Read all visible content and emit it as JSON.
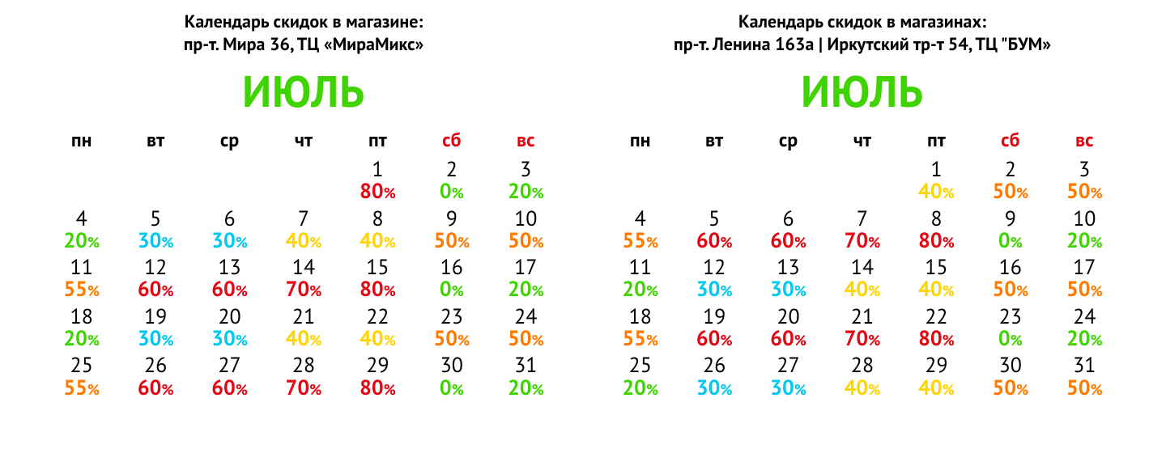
{
  "colors": {
    "black": "#000000",
    "red": "#e30613",
    "green": "#3fd400",
    "cyan": "#00c8f0",
    "yellow": "#ffd400",
    "orange": "#ff7a00"
  },
  "weekdays": {
    "labels": [
      "пн",
      "вт",
      "ср",
      "чт",
      "пт",
      "сб",
      "вс"
    ],
    "weekendColorKey": "red",
    "weekdayColorKey": "black"
  },
  "calendars": [
    {
      "headerLines": [
        "Календарь скидок в магазине:",
        "пр-т. Мира 36, ТЦ «МираМикс»"
      ],
      "month": "ИЮЛЬ",
      "monthColorKey": "green",
      "startWeekday": 4,
      "daysInMonth": 31,
      "discounts": {
        "1": {
          "v": 80,
          "c": "red"
        },
        "2": {
          "v": 0,
          "c": "green"
        },
        "3": {
          "v": 20,
          "c": "green"
        },
        "4": {
          "v": 20,
          "c": "green"
        },
        "5": {
          "v": 30,
          "c": "cyan"
        },
        "6": {
          "v": 30,
          "c": "cyan"
        },
        "7": {
          "v": 40,
          "c": "yellow"
        },
        "8": {
          "v": 40,
          "c": "yellow"
        },
        "9": {
          "v": 50,
          "c": "orange"
        },
        "10": {
          "v": 50,
          "c": "orange"
        },
        "11": {
          "v": 55,
          "c": "orange"
        },
        "12": {
          "v": 60,
          "c": "red"
        },
        "13": {
          "v": 60,
          "c": "red"
        },
        "14": {
          "v": 70,
          "c": "red"
        },
        "15": {
          "v": 80,
          "c": "red"
        },
        "16": {
          "v": 0,
          "c": "green"
        },
        "17": {
          "v": 20,
          "c": "green"
        },
        "18": {
          "v": 20,
          "c": "green"
        },
        "19": {
          "v": 30,
          "c": "cyan"
        },
        "20": {
          "v": 30,
          "c": "cyan"
        },
        "21": {
          "v": 40,
          "c": "yellow"
        },
        "22": {
          "v": 40,
          "c": "yellow"
        },
        "23": {
          "v": 50,
          "c": "orange"
        },
        "24": {
          "v": 50,
          "c": "orange"
        },
        "25": {
          "v": 55,
          "c": "orange"
        },
        "26": {
          "v": 60,
          "c": "red"
        },
        "27": {
          "v": 60,
          "c": "red"
        },
        "28": {
          "v": 70,
          "c": "red"
        },
        "29": {
          "v": 80,
          "c": "red"
        },
        "30": {
          "v": 0,
          "c": "green"
        },
        "31": {
          "v": 20,
          "c": "green"
        }
      }
    },
    {
      "headerLines": [
        "Календарь скидок в магазинaх:",
        "пр-т. Ленина 163а  | Иркутский тр-т 54, ТЦ \"БУМ»"
      ],
      "month": "ИЮЛЬ",
      "monthColorKey": "green",
      "startWeekday": 4,
      "daysInMonth": 31,
      "discounts": {
        "1": {
          "v": 40,
          "c": "yellow"
        },
        "2": {
          "v": 50,
          "c": "orange"
        },
        "3": {
          "v": 50,
          "c": "orange"
        },
        "4": {
          "v": 55,
          "c": "orange"
        },
        "5": {
          "v": 60,
          "c": "red"
        },
        "6": {
          "v": 60,
          "c": "red"
        },
        "7": {
          "v": 70,
          "c": "red"
        },
        "8": {
          "v": 80,
          "c": "red"
        },
        "9": {
          "v": 0,
          "c": "green"
        },
        "10": {
          "v": 20,
          "c": "green"
        },
        "11": {
          "v": 20,
          "c": "green"
        },
        "12": {
          "v": 30,
          "c": "cyan"
        },
        "13": {
          "v": 30,
          "c": "cyan"
        },
        "14": {
          "v": 40,
          "c": "yellow"
        },
        "15": {
          "v": 40,
          "c": "yellow"
        },
        "16": {
          "v": 50,
          "c": "orange"
        },
        "17": {
          "v": 50,
          "c": "orange"
        },
        "18": {
          "v": 55,
          "c": "orange"
        },
        "19": {
          "v": 60,
          "c": "red"
        },
        "20": {
          "v": 60,
          "c": "red"
        },
        "21": {
          "v": 70,
          "c": "red"
        },
        "22": {
          "v": 80,
          "c": "red"
        },
        "23": {
          "v": 0,
          "c": "green"
        },
        "24": {
          "v": 20,
          "c": "green"
        },
        "25": {
          "v": 20,
          "c": "green"
        },
        "26": {
          "v": 30,
          "c": "cyan"
        },
        "27": {
          "v": 30,
          "c": "cyan"
        },
        "28": {
          "v": 40,
          "c": "yellow"
        },
        "29": {
          "v": 40,
          "c": "yellow"
        },
        "30": {
          "v": 50,
          "c": "orange"
        },
        "31": {
          "v": 50,
          "c": "orange"
        }
      }
    }
  ]
}
